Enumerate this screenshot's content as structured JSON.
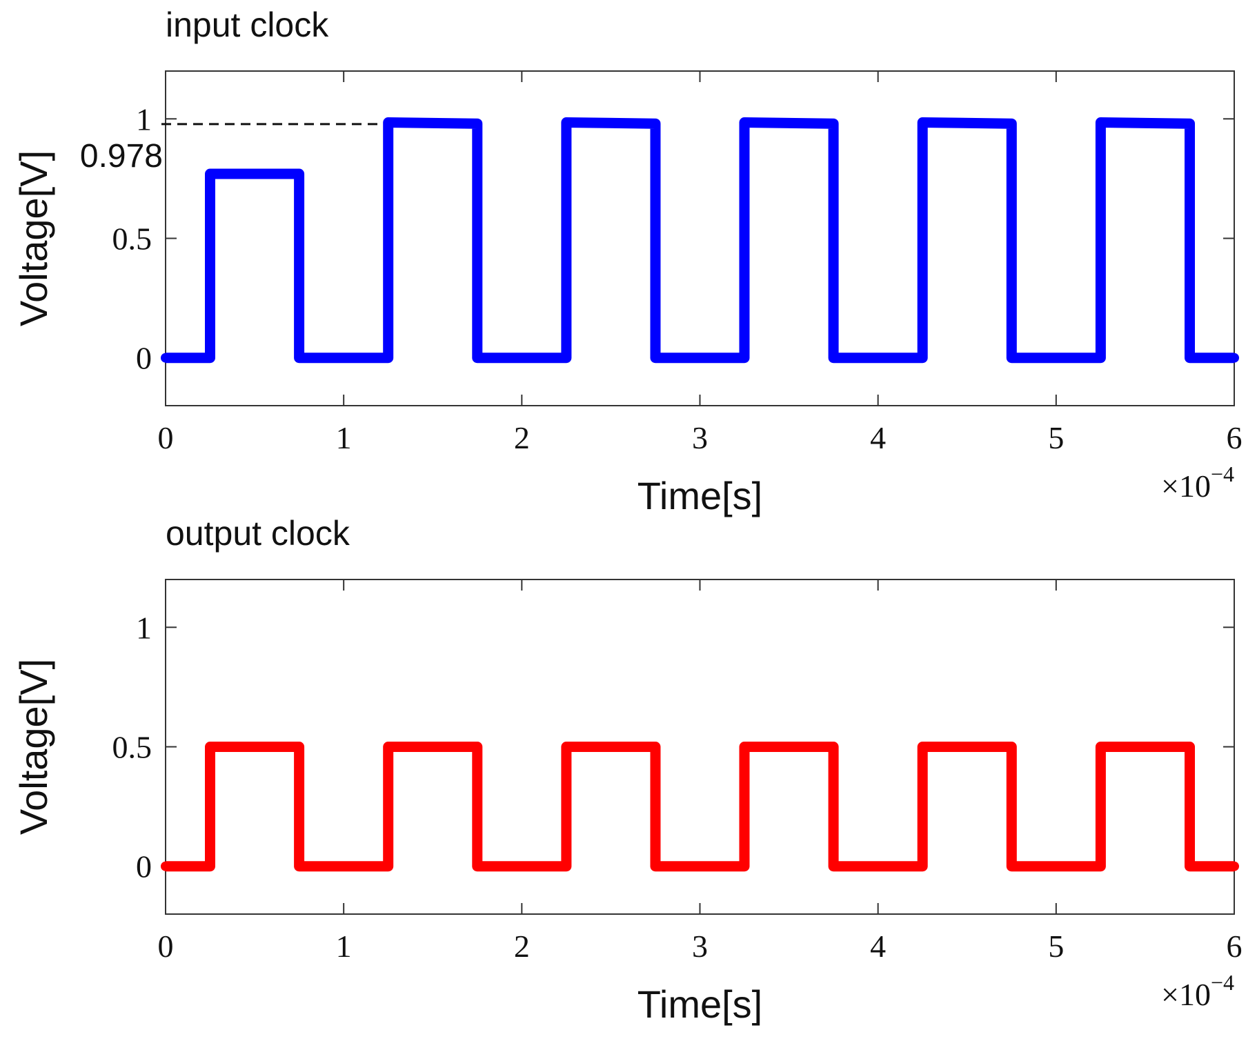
{
  "chart_data": [
    {
      "type": "line",
      "title": "input clock",
      "xlabel": "Time[s]",
      "ylabel": "Voltage[V]",
      "x_multiplier_label": "×10",
      "x_multiplier_exponent": "−4",
      "xlim": [
        0,
        6
      ],
      "ylim": [
        -0.2,
        1.2
      ],
      "xticks": [
        "0",
        "1",
        "2",
        "3",
        "4",
        "5",
        "6"
      ],
      "xtick_values": [
        0,
        1,
        2,
        3,
        4,
        5,
        6
      ],
      "yticks": [
        "0",
        "0.5",
        "1"
      ],
      "ytick_values": [
        0,
        0.5,
        1
      ],
      "grid": false,
      "series": [
        {
          "color": "#0000ff",
          "x": [
            0,
            0.25,
            0.25,
            0.75,
            0.75,
            1.25,
            1.25,
            1.75,
            1.75,
            2.25,
            2.25,
            2.75,
            2.75,
            3.25,
            3.25,
            3.75,
            3.75,
            4.25,
            4.25,
            4.75,
            4.75,
            5.25,
            5.25,
            5.75,
            5.75,
            6
          ],
          "y": [
            0,
            0,
            0.77,
            0.77,
            0,
            0,
            0.985,
            0.98,
            0,
            0,
            0.985,
            0.98,
            0,
            0,
            0.985,
            0.98,
            0,
            0,
            0.985,
            0.98,
            0,
            0,
            0.985,
            0.98,
            0,
            0
          ]
        }
      ],
      "annotations": [
        {
          "label": "0.978",
          "y": 0.978,
          "x_end": 1.25,
          "line_style": "dashed"
        }
      ]
    },
    {
      "type": "line",
      "title": "output clock",
      "xlabel": "Time[s]",
      "ylabel": "Voltage[V]",
      "x_multiplier_label": "×10",
      "x_multiplier_exponent": "−4",
      "xlim": [
        0,
        6
      ],
      "ylim": [
        -0.2,
        1.2
      ],
      "xticks": [
        "0",
        "1",
        "2",
        "3",
        "4",
        "5",
        "6"
      ],
      "xtick_values": [
        0,
        1,
        2,
        3,
        4,
        5,
        6
      ],
      "yticks": [
        "0",
        "0.5",
        "1"
      ],
      "ytick_values": [
        0,
        0.5,
        1
      ],
      "grid": false,
      "series": [
        {
          "color": "#ff0000",
          "x": [
            0,
            0.25,
            0.25,
            0.75,
            0.75,
            1.25,
            1.25,
            1.75,
            1.75,
            2.25,
            2.25,
            2.75,
            2.75,
            3.25,
            3.25,
            3.75,
            3.75,
            4.25,
            4.25,
            4.75,
            4.75,
            5.25,
            5.25,
            5.75,
            5.75,
            6
          ],
          "y": [
            0,
            0,
            0.5,
            0.5,
            0,
            0,
            0.5,
            0.5,
            0,
            0,
            0.5,
            0.5,
            0,
            0,
            0.5,
            0.5,
            0,
            0,
            0.5,
            0.5,
            0,
            0,
            0.5,
            0.5,
            0,
            0
          ]
        }
      ],
      "annotations": []
    }
  ]
}
